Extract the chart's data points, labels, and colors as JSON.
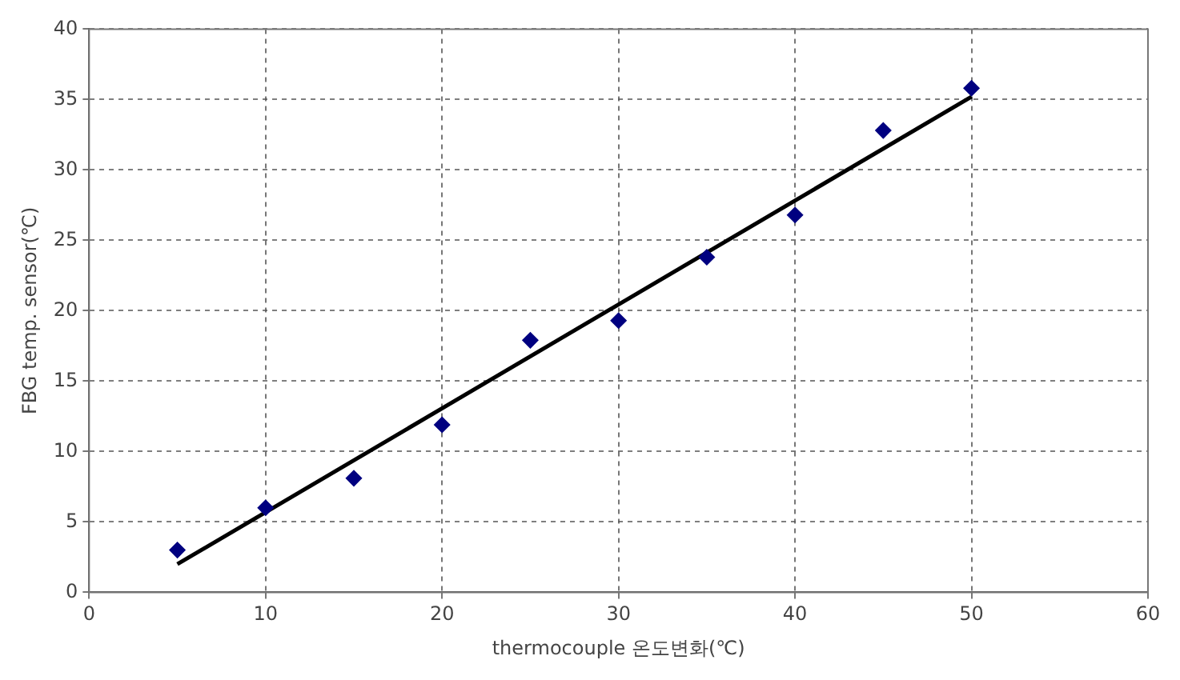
{
  "chart_data": {
    "type": "scatter",
    "xlabel": "thermocouple 온도변화(℃)",
    "ylabel": "FBG temp. sensor(℃)",
    "xlim": [
      0,
      60
    ],
    "xticks": [
      0,
      10,
      20,
      30,
      40,
      50,
      60
    ],
    "ylim": [
      0,
      40
    ],
    "yticks": [
      0,
      5,
      10,
      15,
      20,
      25,
      30,
      35,
      40
    ],
    "grid": true,
    "legend": false,
    "series": [
      {
        "marker": "diamond",
        "color": "#000080",
        "x": [
          5,
          10,
          15,
          20,
          25,
          30,
          35,
          40,
          45,
          50
        ],
        "values": [
          3.0,
          6.0,
          8.1,
          11.9,
          17.9,
          19.3,
          23.8,
          26.8,
          32.8,
          35.8
        ]
      },
      {
        "type": "line",
        "marker": "none",
        "line_style": "solid",
        "color": "#000000",
        "x": [
          5,
          50
        ],
        "values": [
          2.0,
          35.2
        ]
      }
    ]
  }
}
